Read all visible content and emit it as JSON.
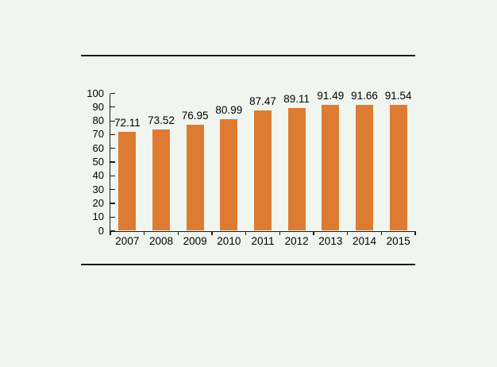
{
  "chart_data": {
    "type": "bar",
    "title": "",
    "categories": [
      "2007",
      "2008",
      "2009",
      "2010",
      "2011",
      "2012",
      "2013",
      "2014",
      "2015"
    ],
    "values": [
      72.11,
      73.52,
      76.95,
      80.99,
      87.47,
      89.11,
      91.49,
      91.66,
      91.54
    ],
    "data_labels": [
      "72.11",
      "73.52",
      "76.95",
      "80.99",
      "87.47",
      "89.11",
      "91.49",
      "91.66",
      "91.54"
    ],
    "xlabel": "",
    "ylabel": "",
    "ylim": [
      0,
      100
    ],
    "y_ticks": [
      0,
      10,
      20,
      30,
      40,
      50,
      60,
      70,
      80,
      90,
      100
    ],
    "grid": "off",
    "legend": "none",
    "bar_color": "#DE7B32",
    "axis_color": "#1a1a1a",
    "text_color": "#000000",
    "background_color": "#F1F5EF"
  }
}
